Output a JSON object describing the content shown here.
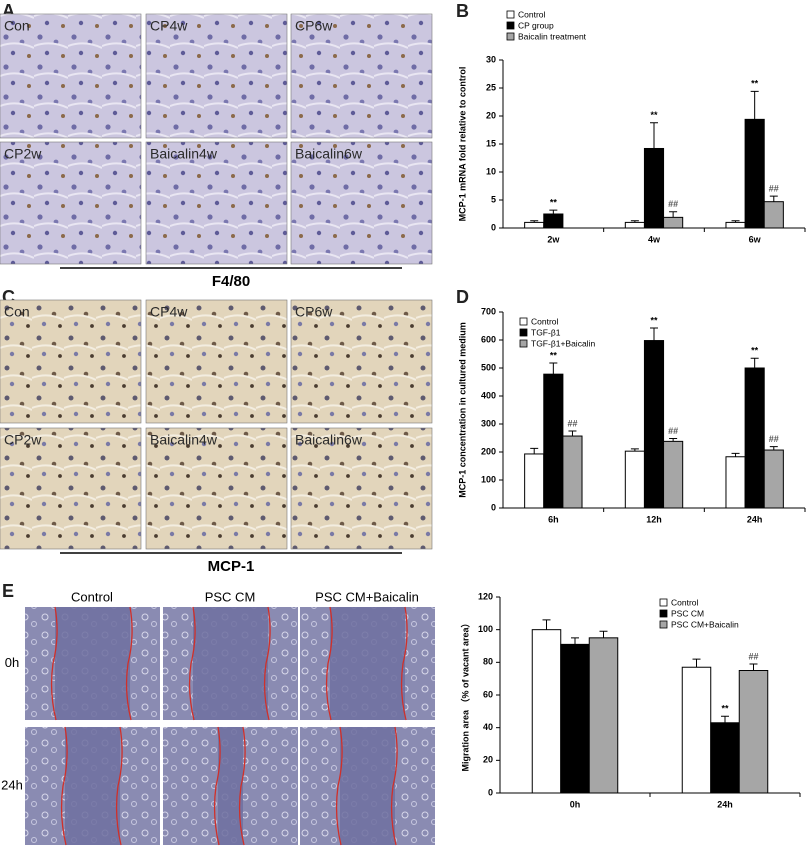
{
  "panel_letters": [
    "A",
    "B",
    "C",
    "D",
    "E"
  ],
  "micrographs_a": {
    "labels": [
      "Con",
      "CP4w",
      "CP6w",
      "CP2w",
      "Baicalin4w",
      "Baicalin6w"
    ],
    "stain": "F4/80"
  },
  "micrographs_c": {
    "labels": [
      "Con",
      "CP4w",
      "CP6w",
      "CP2w",
      "Baicalin4w",
      "Baicalin6w"
    ],
    "stain": "MCP-1"
  },
  "scratch_assay": {
    "columns": [
      "Control",
      "PSC  CM",
      "PSC  CM+Baicalin"
    ],
    "rows": [
      "0h",
      "24h"
    ]
  },
  "chart_data": [
    {
      "type": "bar",
      "y_label": "MCP-1 mRNA fold relative to control",
      "categories": [
        "2w",
        "4w",
        "6w"
      ],
      "series": [
        {
          "name": "Control",
          "color": "#ffffff",
          "values": [
            1,
            1,
            1
          ],
          "errors": [
            0.3,
            0.3,
            0.3
          ],
          "labels": [
            null,
            null,
            null
          ]
        },
        {
          "name": "CP group",
          "color": "#000000",
          "values": [
            2.5,
            14.2,
            19.4
          ],
          "errors": [
            0.7,
            4.6,
            5
          ],
          "labels": [
            "**",
            "**",
            "**"
          ]
        },
        {
          "name": "Baicalin treatment",
          "color": "#a6a6a6",
          "values": [
            null,
            1.9,
            4.7
          ],
          "errors": [
            null,
            1,
            1
          ],
          "labels": [
            null,
            "##",
            "##"
          ]
        }
      ],
      "ylim": [
        0,
        30
      ],
      "yticks": [
        0,
        5,
        10,
        15,
        20,
        25,
        30
      ]
    },
    {
      "type": "bar",
      "y_label": "MCP-1 concentration in cultured medium",
      "categories": [
        "6h",
        "12h",
        "24h"
      ],
      "series": [
        {
          "name": "Control",
          "color": "#ffffff",
          "values": [
            193,
            203,
            183
          ],
          "errors": [
            20,
            8,
            12
          ],
          "labels": [
            null,
            null,
            null
          ]
        },
        {
          "name": "TGF-β1",
          "color": "#000000",
          "values": [
            478,
            598,
            500
          ],
          "errors": [
            40,
            45,
            35
          ],
          "labels": [
            "**",
            "**",
            "**"
          ]
        },
        {
          "name": "TGF-β1+Baicalin",
          "color": "#a6a6a6",
          "values": [
            257,
            238,
            207
          ],
          "errors": [
            18,
            10,
            12
          ],
          "labels": [
            "##",
            "##",
            "##"
          ]
        }
      ],
      "ylim": [
        0,
        700
      ],
      "yticks": [
        0,
        100,
        200,
        300,
        400,
        500,
        600,
        700
      ]
    },
    {
      "type": "bar",
      "y_label": "Migration area （% of vacant area）",
      "categories": [
        "0h",
        "24h"
      ],
      "series": [
        {
          "name": "Control",
          "color": "#ffffff",
          "values": [
            100,
            77
          ],
          "errors": [
            6,
            5
          ],
          "labels": [
            null,
            null
          ]
        },
        {
          "name": "PSC CM",
          "color": "#000000",
          "values": [
            91,
            43
          ],
          "errors": [
            4,
            4
          ],
          "labels": [
            null,
            "**"
          ]
        },
        {
          "name": "PSC CM+Baicalin",
          "color": "#a6a6a6",
          "values": [
            95,
            75
          ],
          "errors": [
            4,
            4
          ],
          "labels": [
            null,
            "##"
          ]
        }
      ],
      "ylim": [
        0,
        120
      ],
      "yticks": [
        0,
        20,
        40,
        60,
        80,
        100,
        120
      ]
    }
  ]
}
